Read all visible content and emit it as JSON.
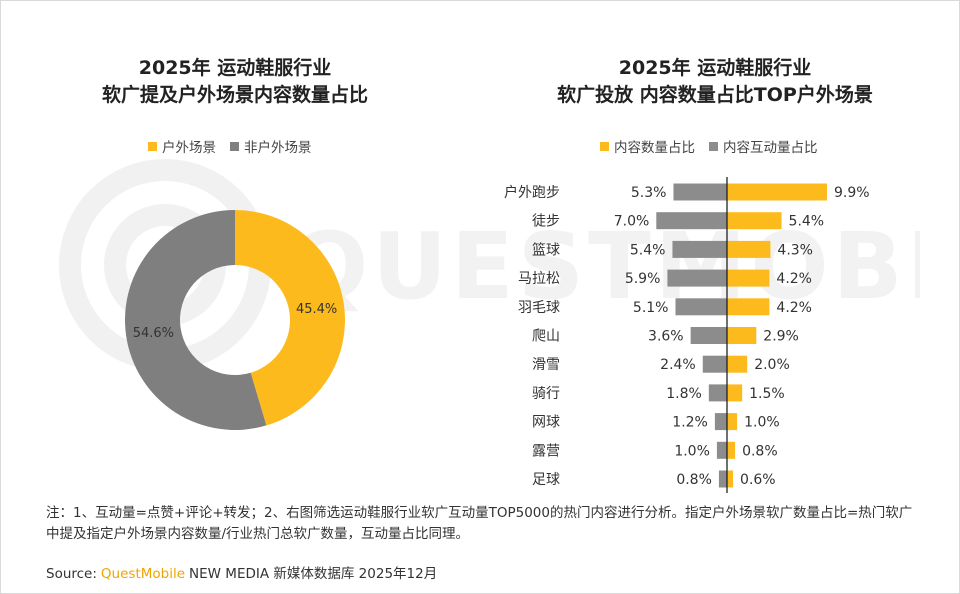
{
  "colors": {
    "outdoor": "#FDBA1C",
    "non_outdoor": "#7F7F7F",
    "content_share": "#FDBA1C",
    "interaction_share": "#8C8C8C",
    "brand": "#F0A400"
  },
  "left_chart": {
    "title_line1": "2025年 运动鞋服行业",
    "title_line2": "软广提及户外场景内容数量占比",
    "legend": [
      "户外场景",
      "非户外场景"
    ]
  },
  "right_chart": {
    "title_line1": "2025年 运动鞋服行业",
    "title_line2": "软广投放 内容数量占比TOP户外场景",
    "legend": [
      "内容数量占比",
      "内容互动量占比"
    ]
  },
  "chart_data": [
    {
      "type": "pie",
      "variant": "donut",
      "title": "2025年 运动鞋服行业 软广提及户外场景内容数量占比",
      "categories": [
        "户外场景",
        "非户外场景"
      ],
      "values": [
        45.4,
        54.6
      ],
      "labels": [
        "45.4%",
        "54.6%"
      ],
      "legend_position": "top"
    },
    {
      "type": "bar",
      "orientation": "horizontal-diverging",
      "title": "2025年 运动鞋服行业 软广投放 内容数量占比TOP户外场景",
      "categories": [
        "户外跑步",
        "徒步",
        "篮球",
        "马拉松",
        "羽毛球",
        "爬山",
        "滑雪",
        "骑行",
        "网球",
        "露营",
        "足球"
      ],
      "series": [
        {
          "name": "内容数量占比",
          "side": "right",
          "values": [
            9.9,
            5.4,
            4.3,
            4.2,
            4.2,
            2.9,
            2.0,
            1.5,
            1.0,
            0.8,
            0.6
          ],
          "labels": [
            "9.9%",
            "5.4%",
            "4.3%",
            "4.2%",
            "4.2%",
            "2.9%",
            "2.0%",
            "1.5%",
            "1.0%",
            "0.8%",
            "0.6%"
          ]
        },
        {
          "name": "内容互动量占比",
          "side": "left",
          "values": [
            5.3,
            7.0,
            5.4,
            5.9,
            5.1,
            3.6,
            2.4,
            1.8,
            1.2,
            1.0,
            0.8
          ],
          "labels": [
            "5.3%",
            "7.0%",
            "5.4%",
            "5.9%",
            "5.1%",
            "3.6%",
            "2.4%",
            "1.8%",
            "1.2%",
            "1.0%",
            "0.8%"
          ]
        }
      ],
      "legend_position": "top"
    }
  ],
  "footer": {
    "note": "注：1、互动量=点赞+评论+转发；2、右图筛选运动鞋服行业软广互动量TOP5000的热门内容进行分析。指定户外场景软广数量占比=热门软广中提及指定户外场景内容数量/行业热门总软广数量，互动量占比同理。",
    "source_label": "Source:",
    "source_brand": "QuestMobile",
    "source_rest": "NEW MEDIA 新媒体数据库 2025年12月"
  },
  "watermark_text": "QUESTMOBILE"
}
